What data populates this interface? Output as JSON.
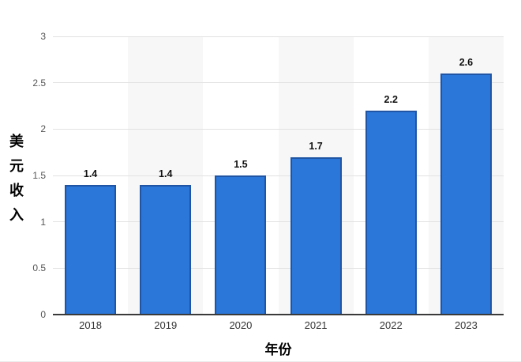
{
  "chart_data": {
    "type": "bar",
    "title": "",
    "categories": [
      "2018",
      "2019",
      "2020",
      "2021",
      "2022",
      "2023"
    ],
    "values": [
      1.4,
      1.4,
      1.5,
      1.7,
      2.2,
      2.6
    ],
    "value_labels": [
      "1.4",
      "1.4",
      "1.5",
      "1.7",
      "2.2",
      "2.6"
    ],
    "xlabel": "年份",
    "ylabel": "美元收入",
    "ylim": [
      0,
      3
    ],
    "yticks": [
      "0",
      "0.5",
      "1",
      "1.5",
      "2",
      "2.5",
      "3"
    ],
    "grid": true,
    "legend": "none",
    "band_columns": [
      1,
      3,
      5
    ]
  },
  "colors": {
    "bar_fill": "#2b76d9",
    "bar_border": "#1f55a4",
    "gridline": "#e2e2e2",
    "band": "#f7f7f8",
    "axis_line": "#3a3a3a",
    "y_tick_label": "#555555",
    "x_tick_label": "#333333",
    "value_label": "#111111",
    "axis_title": "#000000"
  }
}
